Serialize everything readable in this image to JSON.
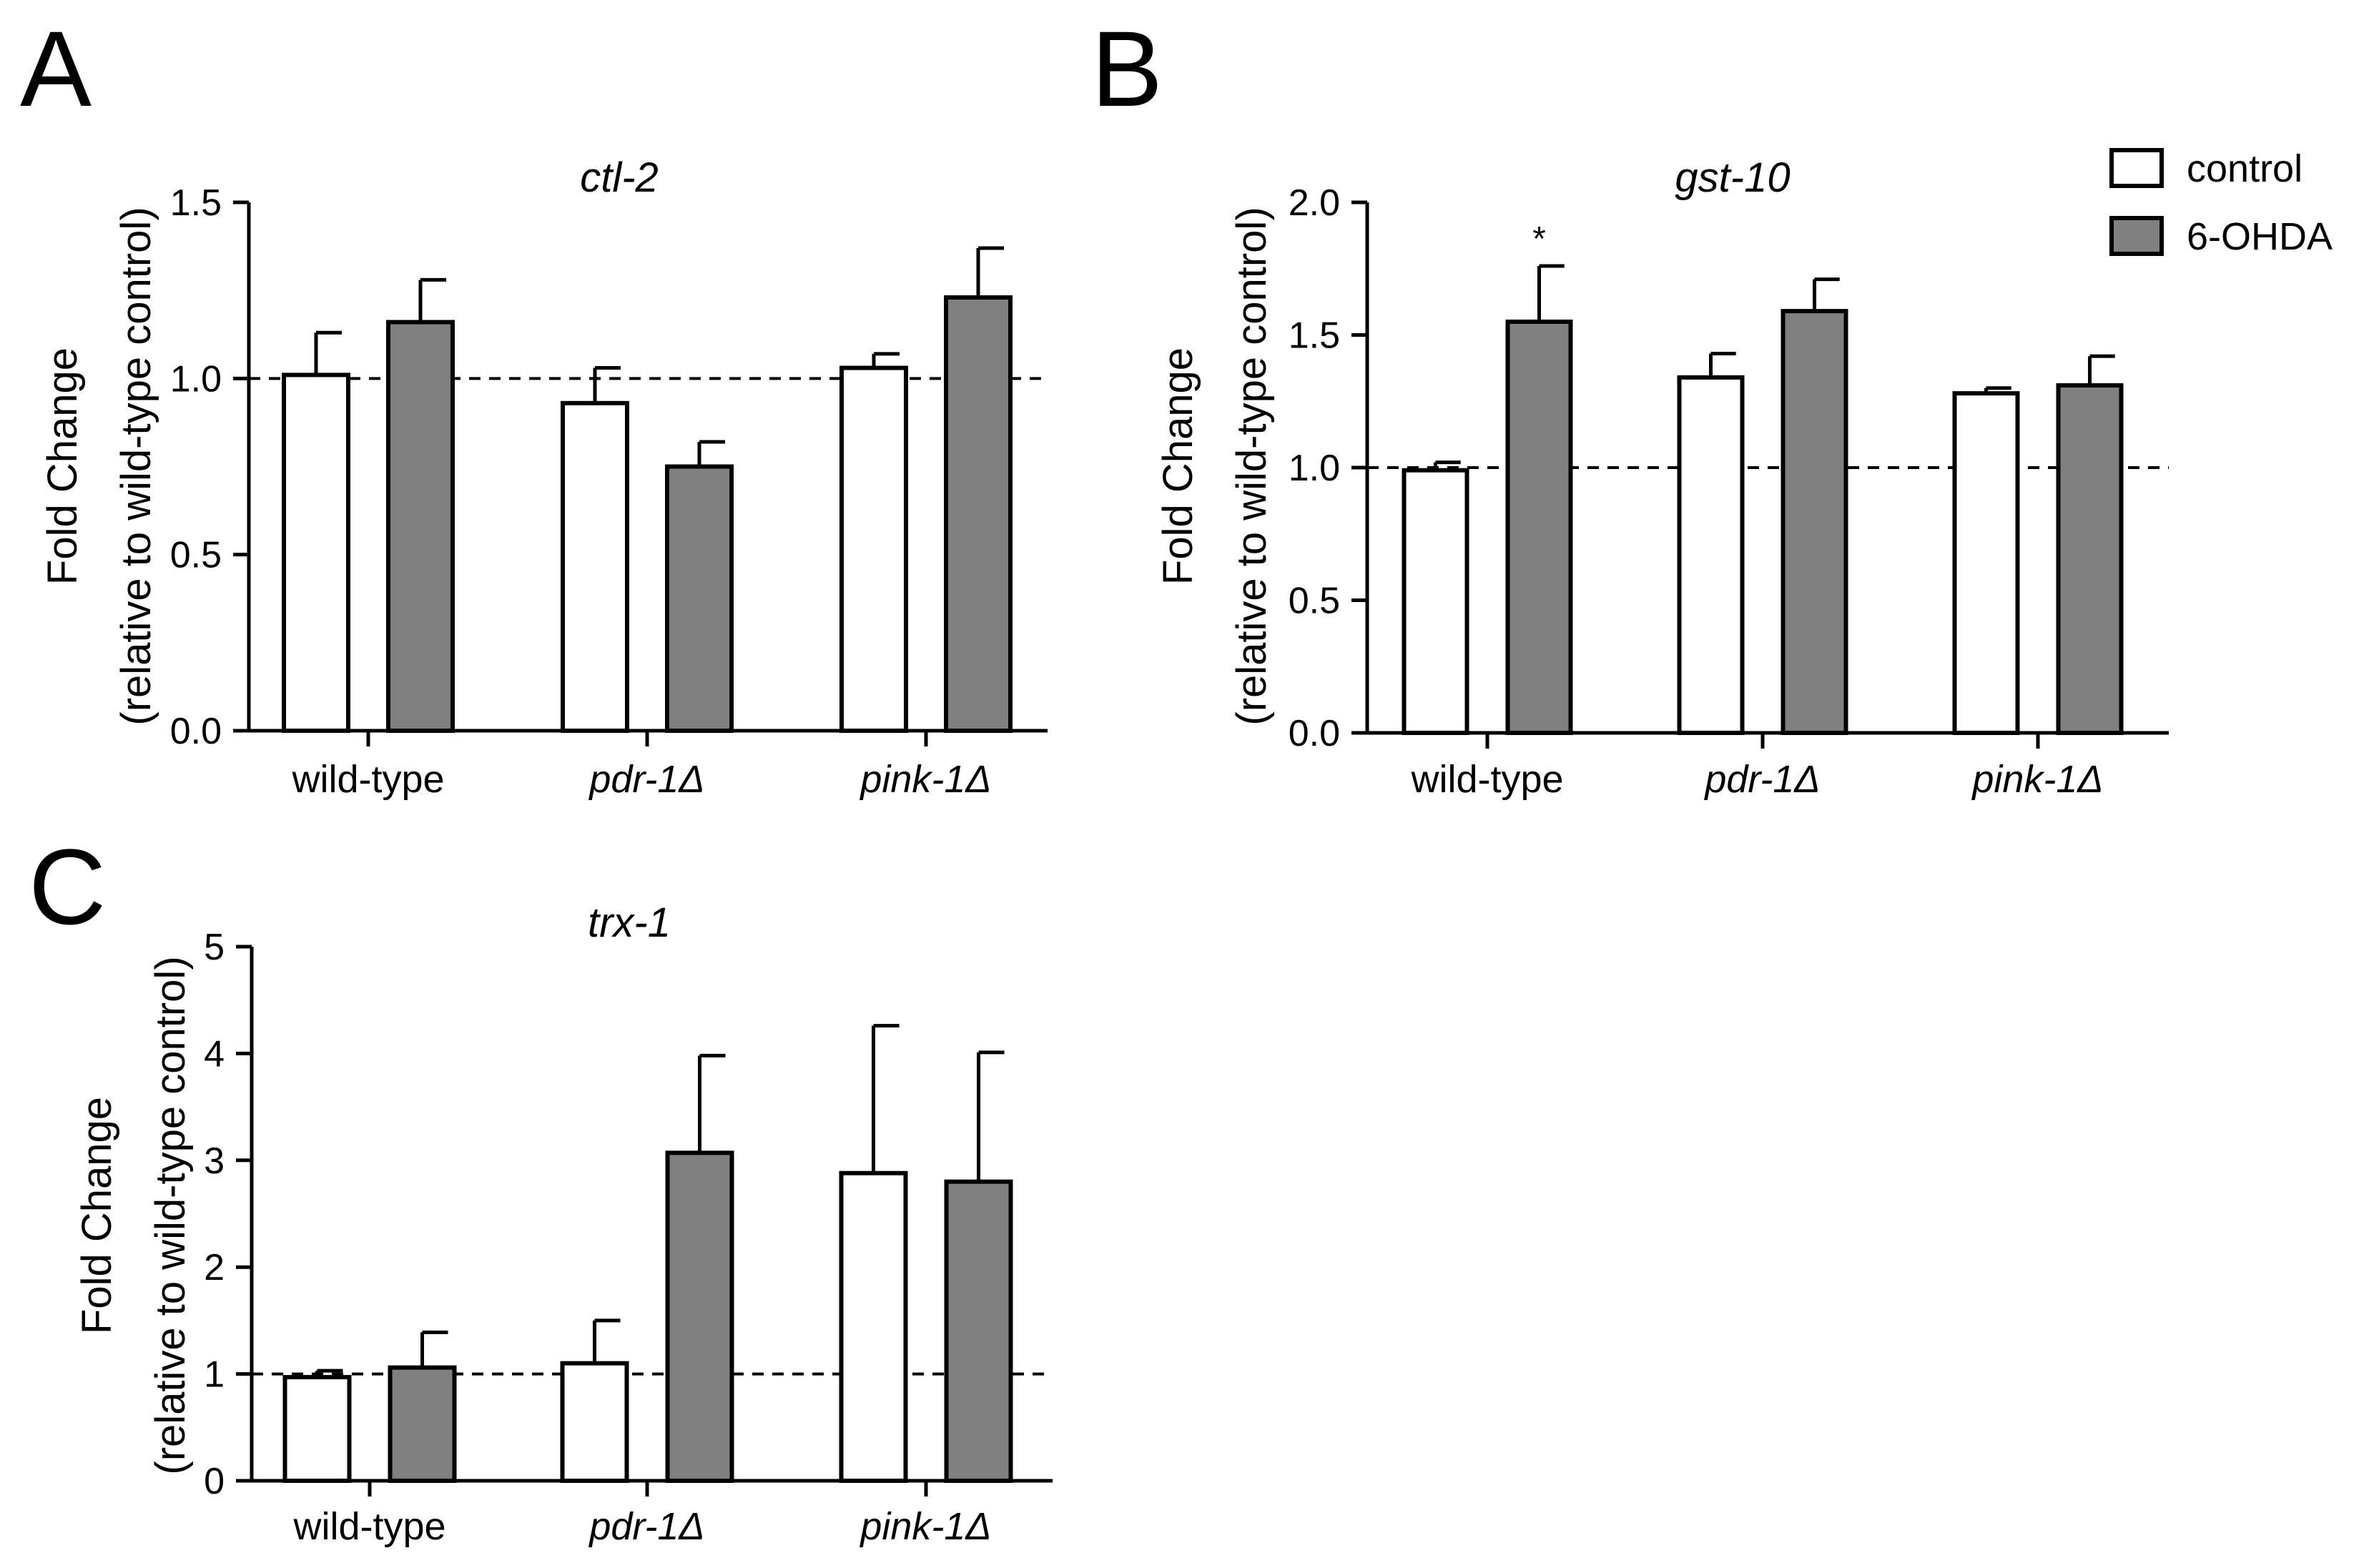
{
  "chart_data": [
    {
      "panel": "A",
      "type": "bar",
      "title": "ctl-2",
      "ylabel": "Fold Change",
      "ylabel2": "(relative to wild-type control)",
      "ylim": [
        0,
        1.5
      ],
      "yticks": [
        "0.0",
        "0.5",
        "1.0",
        "1.5"
      ],
      "ytick_values": [
        0,
        0.5,
        1.0,
        1.5
      ],
      "reference_line": 1.0,
      "categories": [
        "wild-type",
        "pdr-1Δ",
        "pink-1Δ"
      ],
      "category_italic": [
        false,
        true,
        true
      ],
      "series": [
        {
          "name": "control",
          "values": [
            1.01,
            0.93,
            1.03
          ],
          "errors": [
            0.12,
            0.1,
            0.04
          ],
          "color": "#ffffff"
        },
        {
          "name": "6-OHDA",
          "values": [
            1.16,
            0.75,
            1.23
          ],
          "errors": [
            0.12,
            0.07,
            0.14
          ],
          "color": "#808080"
        }
      ],
      "significance": []
    },
    {
      "panel": "B",
      "type": "bar",
      "title": "gst-10",
      "ylabel": "Fold Change",
      "ylabel2": "(relative to wild-type control)",
      "ylim": [
        0,
        2.0
      ],
      "yticks": [
        "0.0",
        "0.5",
        "1.0",
        "1.5",
        "2.0"
      ],
      "ytick_values": [
        0,
        0.5,
        1.0,
        1.5,
        2.0
      ],
      "reference_line": 1.0,
      "categories": [
        "wild-type",
        "pdr-1Δ",
        "pink-1Δ"
      ],
      "category_italic": [
        false,
        true,
        true
      ],
      "series": [
        {
          "name": "control",
          "values": [
            0.99,
            1.34,
            1.28
          ],
          "errors": [
            0.03,
            0.09,
            0.02
          ],
          "color": "#ffffff"
        },
        {
          "name": "6-OHDA",
          "values": [
            1.55,
            1.59,
            1.31
          ],
          "errors": [
            0.21,
            0.12,
            0.11
          ],
          "color": "#808080"
        }
      ],
      "significance": [
        {
          "series": 1,
          "category": 0,
          "label": "*"
        }
      ],
      "legend": {
        "placement": "top-right",
        "entries": [
          "control",
          "6-OHDA"
        ]
      }
    },
    {
      "panel": "C",
      "type": "bar",
      "title": "trx-1",
      "ylabel": "Fold Change",
      "ylabel2": "(relative to wild-type control)",
      "ylim": [
        0,
        5
      ],
      "yticks": [
        "0",
        "1",
        "2",
        "3",
        "4",
        "5"
      ],
      "ytick_values": [
        0,
        1,
        2,
        3,
        4,
        5
      ],
      "reference_line": 1.0,
      "categories": [
        "wild-type",
        "pdr-1Δ",
        "pink-1Δ"
      ],
      "category_italic": [
        false,
        true,
        true
      ],
      "series": [
        {
          "name": "control",
          "values": [
            0.97,
            1.1,
            2.88
          ],
          "errors": [
            0.06,
            0.4,
            1.38
          ],
          "color": "#ffffff"
        },
        {
          "name": "6-OHDA",
          "values": [
            1.06,
            3.07,
            2.8
          ],
          "errors": [
            0.33,
            0.91,
            1.21
          ],
          "color": "#808080"
        }
      ],
      "significance": []
    }
  ]
}
